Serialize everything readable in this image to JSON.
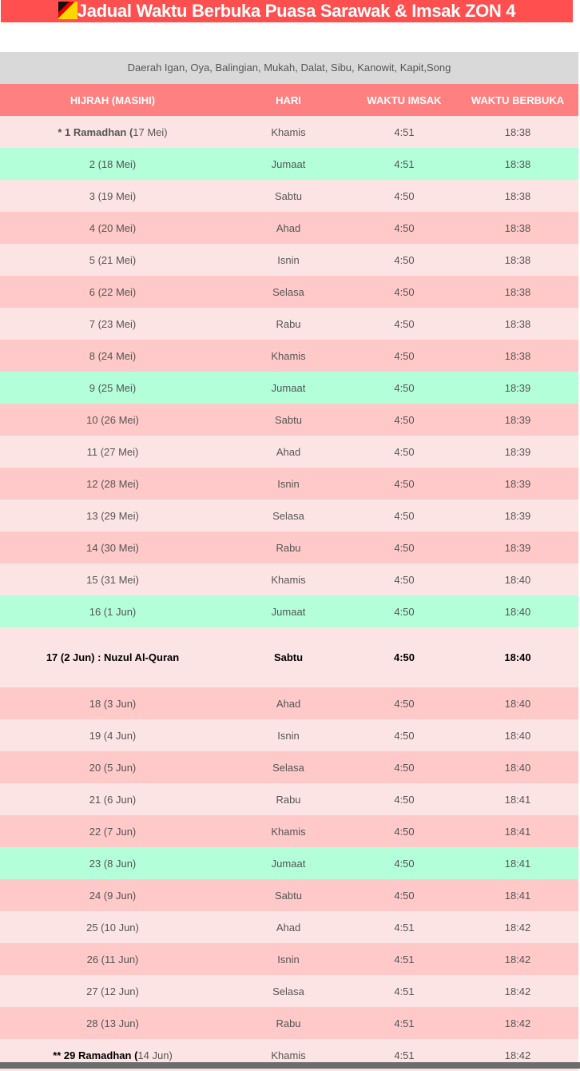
{
  "title": "Jadual Waktu Berbuka Puasa Sarawak & Imsak ZON 4",
  "district": "Daerah Igan, Oya, Balingian, Mukah, Dalat, Sibu, Kanowit, Kapit,Song",
  "headers": [
    "HIJRAH (MASIHI)",
    "HARI",
    "WAKTU IMSAK",
    "WAKTU BERBUKA"
  ],
  "colors": {
    "title": "#ff4f4f",
    "header": "#ff8080",
    "light": "#fde4e4",
    "dark": "#ffc9c9",
    "jumaat": "#b3ffd9"
  },
  "rows": [
    {
      "bold": "* 1 Ramadhan (",
      "date": "17 Mei)",
      "day": "Khamis",
      "imsak": "4:51",
      "berbuka": "18:38"
    },
    {
      "date": "2 (18 Mei)",
      "day": "Jumaat",
      "imsak": "4:51",
      "berbuka": "18:38"
    },
    {
      "date": "3 (19 Mei)",
      "day": "Sabtu",
      "imsak": "4:50",
      "berbuka": "18:38"
    },
    {
      "date": "4 (20 Mei)",
      "day": "Ahad",
      "imsak": "4:50",
      "berbuka": "18:38"
    },
    {
      "date": "5 (21 Mei)",
      "day": "Isnin",
      "imsak": "4:50",
      "berbuka": "18:38"
    },
    {
      "date": "6 (22 Mei)",
      "day": "Selasa",
      "imsak": "4:50",
      "berbuka": "18:38"
    },
    {
      "date": "7 (23 Mei)",
      "day": "Rabu",
      "imsak": "4:50",
      "berbuka": "18:38"
    },
    {
      "date": "8 (24 Mei)",
      "day": "Khamis",
      "imsak": "4:50",
      "berbuka": "18:38"
    },
    {
      "date": "9 (25 Mei)",
      "day": "Jumaat",
      "imsak": "4:50",
      "berbuka": "18:39"
    },
    {
      "date": "10 (26 Mei)",
      "day": "Sabtu",
      "imsak": "4:50",
      "berbuka": "18:39"
    },
    {
      "date": "11 (27 Mei)",
      "day": "Ahad",
      "imsak": "4:50",
      "berbuka": "18:39"
    },
    {
      "date": "12 (28 Mei)",
      "day": "Isnin",
      "imsak": "4:50",
      "berbuka": "18:39"
    },
    {
      "date": "13 (29 Mei)",
      "day": "Selasa",
      "imsak": "4:50",
      "berbuka": "18:39"
    },
    {
      "date": "14 (30 Mei)",
      "day": "Rabu",
      "imsak": "4:50",
      "berbuka": "18:39"
    },
    {
      "date": "15 (31 Mei)",
      "day": "Khamis",
      "imsak": "4:50",
      "berbuka": "18:40"
    },
    {
      "date": "16 (1 Jun)",
      "day": "Jumaat",
      "imsak": "4:50",
      "berbuka": "18:40"
    },
    {
      "date": "17 (2 Jun) : Nuzul Al-Quran",
      "day": "Sabtu",
      "imsak": "4:50",
      "berbuka": "18:40",
      "special": true
    },
    {
      "date": "18 (3 Jun)",
      "day": "Ahad",
      "imsak": "4:50",
      "berbuka": "18:40"
    },
    {
      "date": "19 (4 Jun)",
      "day": "Isnin",
      "imsak": "4:50",
      "berbuka": "18:40"
    },
    {
      "date": "20 (5 Jun)",
      "day": "Selasa",
      "imsak": "4:50",
      "berbuka": "18:40"
    },
    {
      "date": "21 (6 Jun)",
      "day": "Rabu",
      "imsak": "4:50",
      "berbuka": "18:41"
    },
    {
      "date": "22 (7 Jun)",
      "day": "Khamis",
      "imsak": "4:50",
      "berbuka": "18:41"
    },
    {
      "date": "23 (8 Jun)",
      "day": "Jumaat",
      "imsak": "4:50",
      "berbuka": "18:41"
    },
    {
      "date": "24 (9 Jun)",
      "day": "Sabtu",
      "imsak": "4:50",
      "berbuka": "18:41"
    },
    {
      "date": "25 (10 Jun)",
      "day": "Ahad",
      "imsak": "4:51",
      "berbuka": "18:42"
    },
    {
      "date": "26 (11 Jun)",
      "day": "Isnin",
      "imsak": "4:51",
      "berbuka": "18:42"
    },
    {
      "date": "27 (12 Jun)",
      "day": "Selasa",
      "imsak": "4:51",
      "berbuka": "18:42"
    },
    {
      "date": "28 (13 Jun)",
      "day": "Rabu",
      "imsak": "4:51",
      "berbuka": "18:42"
    },
    {
      "bold": "** 29 Ramadhan (",
      "date": "14 Jun)",
      "day": "Khamis",
      "imsak": "4:51",
      "berbuka": "18:42"
    }
  ]
}
